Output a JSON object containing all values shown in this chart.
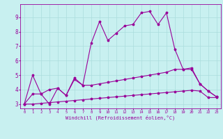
{
  "xlabel": "Windchill (Refroidissement éolien,°C)",
  "bg_color": "#c8f0f0",
  "line_color": "#990099",
  "grid_color": "#aadddd",
  "xlim": [
    -0.5,
    23.5
  ],
  "ylim": [
    2.7,
    9.9
  ],
  "xticks": [
    0,
    1,
    2,
    3,
    4,
    5,
    6,
    7,
    8,
    9,
    10,
    11,
    12,
    13,
    14,
    15,
    16,
    17,
    18,
    19,
    20,
    21,
    22,
    23
  ],
  "yticks": [
    3,
    4,
    5,
    6,
    7,
    8,
    9
  ],
  "series": [
    {
      "x": [
        0,
        1,
        2,
        3,
        4,
        5,
        6,
        7,
        8,
        9,
        10,
        11,
        12,
        13,
        14,
        15,
        16,
        17,
        18,
        19,
        20,
        21,
        22,
        23
      ],
      "y": [
        3.0,
        5.0,
        3.7,
        3.0,
        4.1,
        3.6,
        4.7,
        4.3,
        7.2,
        8.7,
        7.4,
        7.9,
        8.4,
        8.5,
        9.3,
        9.4,
        8.5,
        9.3,
        6.8,
        5.4,
        5.4,
        4.4,
        3.9,
        3.5
      ]
    },
    {
      "x": [
        0,
        1,
        2,
        3,
        4,
        5,
        6,
        7,
        8,
        9,
        10,
        11,
        12,
        13,
        14,
        15,
        16,
        17,
        18,
        19,
        20,
        21,
        22,
        23
      ],
      "y": [
        3.0,
        3.7,
        3.7,
        4.0,
        4.1,
        3.6,
        4.8,
        4.3,
        4.3,
        4.4,
        4.5,
        4.6,
        4.7,
        4.8,
        4.9,
        5.0,
        5.1,
        5.2,
        5.4,
        5.4,
        5.5,
        4.4,
        3.9,
        3.5
      ]
    },
    {
      "x": [
        0,
        1,
        2,
        3,
        4,
        5,
        6,
        7,
        8,
        9,
        10,
        11,
        12,
        13,
        14,
        15,
        16,
        17,
        18,
        19,
        20,
        21,
        22,
        23
      ],
      "y": [
        3.0,
        3.0,
        3.05,
        3.1,
        3.15,
        3.2,
        3.25,
        3.3,
        3.35,
        3.4,
        3.45,
        3.5,
        3.55,
        3.6,
        3.65,
        3.7,
        3.75,
        3.8,
        3.85,
        3.9,
        3.95,
        3.9,
        3.45,
        3.45
      ]
    }
  ]
}
